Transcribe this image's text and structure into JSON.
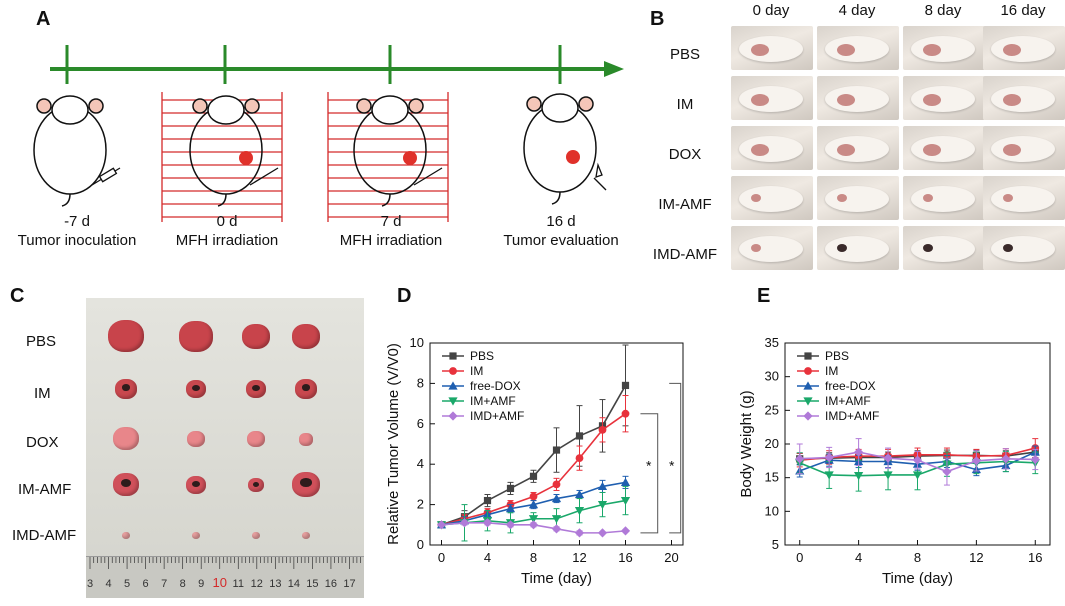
{
  "panel_a": {
    "letter": "A",
    "timeline": [
      {
        "day": "-7 d",
        "event": "Tumor inoculation"
      },
      {
        "day": "0 d",
        "event": "MFH irradiation"
      },
      {
        "day": "7 d",
        "event": "MFH irradiation"
      },
      {
        "day": "16 d",
        "event": "Tumor evaluation"
      }
    ]
  },
  "panel_b": {
    "letter": "B",
    "columns": [
      "0 day",
      "4 day",
      "8 day",
      "16 day"
    ],
    "rows": [
      "PBS",
      "IM",
      "DOX",
      "IM-AMF",
      "IMD-AMF"
    ]
  },
  "panel_c": {
    "letter": "C",
    "rows": [
      "PBS",
      "IM",
      "DOX",
      "IM-AMF",
      "IMD-AMF"
    ],
    "ruler_numbers": [
      "3",
      "4",
      "5",
      "6",
      "7",
      "8",
      "9",
      "10",
      "11",
      "12",
      "13",
      "14",
      "15",
      "16",
      "17"
    ]
  },
  "panel_d": {
    "letter": "D"
  },
  "panel_e": {
    "letter": "E"
  },
  "colors": {
    "green_line": "#2a8a2a",
    "red_grid": "#d42a2a",
    "PBS": "#444444",
    "IM": "#e8323c",
    "free-DOX": "#1f5fb0",
    "IM+AMF": "#1aa86a",
    "IMD+AMF": "#b07ad8"
  },
  "chart_data": [
    {
      "type": "line",
      "panel": "D",
      "xlabel": "Time (day)",
      "ylabel": "Relative Tumor Volume (V/V0)",
      "xlim": [
        -1,
        21
      ],
      "ylim": [
        0,
        10
      ],
      "xticks": [
        0,
        4,
        8,
        12,
        16,
        20
      ],
      "yticks": [
        0,
        2,
        4,
        6,
        8,
        10
      ],
      "legend": "top-left",
      "annotations": [
        "*",
        "*"
      ],
      "series": [
        {
          "name": "PBS",
          "marker": "square",
          "x": [
            0,
            2,
            4,
            6,
            8,
            10,
            12,
            14,
            16
          ],
          "y": [
            1.0,
            1.4,
            2.2,
            2.8,
            3.4,
            4.7,
            5.4,
            5.9,
            7.9
          ],
          "err": [
            0.1,
            0.3,
            0.3,
            0.3,
            0.3,
            1.1,
            1.5,
            1.3,
            2.0
          ]
        },
        {
          "name": "IM",
          "marker": "circle",
          "x": [
            0,
            2,
            4,
            6,
            8,
            10,
            12,
            14,
            16
          ],
          "y": [
            1.0,
            1.3,
            1.6,
            2.0,
            2.4,
            3.0,
            4.3,
            5.7,
            6.5
          ],
          "err": [
            0.1,
            0.2,
            0.2,
            0.2,
            0.2,
            0.3,
            0.6,
            0.6,
            0.9
          ]
        },
        {
          "name": "free-DOX",
          "marker": "triangle-up",
          "x": [
            0,
            2,
            4,
            6,
            8,
            10,
            12,
            14,
            16
          ],
          "y": [
            1.0,
            1.2,
            1.5,
            1.8,
            2.0,
            2.3,
            2.5,
            2.9,
            3.1
          ],
          "err": [
            0.1,
            0.2,
            0.2,
            0.2,
            0.2,
            0.2,
            0.2,
            0.3,
            0.3
          ]
        },
        {
          "name": "IM+AMF",
          "marker": "triangle-down",
          "x": [
            0,
            2,
            4,
            6,
            8,
            10,
            12,
            14,
            16
          ],
          "y": [
            1.0,
            1.1,
            1.2,
            1.1,
            1.3,
            1.3,
            1.7,
            2.0,
            2.2
          ],
          "err": [
            0.1,
            0.9,
            0.5,
            0.5,
            0.3,
            0.5,
            0.6,
            0.6,
            0.7
          ]
        },
        {
          "name": "IMD+AMF",
          "marker": "diamond",
          "x": [
            0,
            2,
            4,
            6,
            8,
            10,
            12,
            14,
            16
          ],
          "y": [
            1.0,
            1.1,
            1.1,
            1.0,
            1.0,
            0.8,
            0.6,
            0.6,
            0.7
          ],
          "err": [
            0.05,
            0.1,
            0.1,
            0.1,
            0.1,
            0.1,
            0.1,
            0.05,
            0.05
          ]
        }
      ]
    },
    {
      "type": "line",
      "panel": "E",
      "xlabel": "Time (day)",
      "ylabel": "Body Weight (g)",
      "xlim": [
        -1,
        17
      ],
      "ylim": [
        5,
        35
      ],
      "xticks": [
        0,
        4,
        8,
        12,
        16
      ],
      "yticks": [
        5,
        10,
        15,
        20,
        25,
        30,
        35
      ],
      "legend": "top-left",
      "series": [
        {
          "name": "PBS",
          "marker": "square",
          "x": [
            0,
            2,
            4,
            6,
            8,
            10,
            12,
            14,
            16
          ],
          "y": [
            17.8,
            17.9,
            18.0,
            18.0,
            18.2,
            18.3,
            18.3,
            18.2,
            18.8
          ],
          "err": [
            0.8,
            0.8,
            0.8,
            0.8,
            0.8,
            0.8,
            0.8,
            0.8,
            0.8
          ]
        },
        {
          "name": "IM",
          "marker": "circle",
          "x": [
            0,
            2,
            4,
            6,
            8,
            10,
            12,
            14,
            16
          ],
          "y": [
            17.6,
            18.0,
            18.2,
            18.2,
            18.4,
            18.4,
            18.2,
            18.3,
            19.4
          ],
          "err": [
            1.0,
            1.0,
            1.0,
            1.0,
            1.0,
            1.0,
            1.0,
            1.0,
            1.4
          ]
        },
        {
          "name": "free-DOX",
          "marker": "triangle-up",
          "x": [
            0,
            2,
            4,
            6,
            8,
            10,
            12,
            14,
            16
          ],
          "y": [
            16.0,
            17.6,
            17.4,
            17.4,
            17.0,
            17.4,
            16.2,
            16.8,
            18.8
          ],
          "err": [
            0.9,
            0.9,
            0.9,
            0.9,
            0.9,
            0.9,
            0.9,
            0.9,
            0.9
          ]
        },
        {
          "name": "IM+AMF",
          "marker": "triangle-down",
          "x": [
            0,
            2,
            4,
            6,
            8,
            10,
            12,
            14,
            16
          ],
          "y": [
            17.2,
            15.4,
            15.3,
            15.4,
            15.4,
            17.0,
            17.2,
            17.4,
            17.2
          ],
          "err": [
            1.5,
            2.0,
            2.3,
            2.2,
            2.2,
            1.8,
            1.6,
            1.5,
            1.6
          ]
        },
        {
          "name": "IMD+AMF",
          "marker": "diamond",
          "x": [
            0,
            2,
            4,
            6,
            8,
            10,
            12,
            14,
            16
          ],
          "y": [
            17.8,
            18.0,
            18.8,
            17.9,
            17.6,
            15.9,
            17.5,
            17.8,
            17.7
          ],
          "err": [
            2.2,
            1.5,
            2.0,
            1.5,
            1.3,
            2.0,
            1.5,
            1.5,
            1.5
          ]
        }
      ]
    }
  ]
}
